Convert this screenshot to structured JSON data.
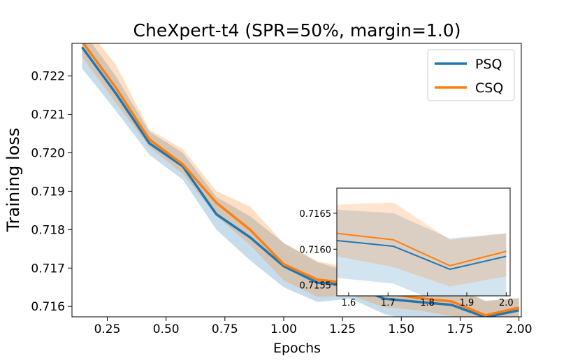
{
  "chart_data": {
    "type": "line",
    "title": "CheXpert-t4 (SPR=50%, margin=1.0)",
    "xlabel": "Epochs",
    "ylabel": "Training loss",
    "xlim": [
      0.1,
      2.01
    ],
    "ylim": [
      0.71573,
      0.72285
    ],
    "xticks": [
      0.25,
      0.5,
      0.75,
      1.0,
      1.25,
      1.5,
      1.75,
      2.0
    ],
    "xtick_labels": [
      "0.25",
      "0.50",
      "0.75",
      "1.00",
      "1.25",
      "1.50",
      "1.75",
      "2.00"
    ],
    "yticks": [
      0.716,
      0.717,
      0.718,
      0.719,
      0.72,
      0.721,
      0.722
    ],
    "ytick_labels": [
      "0.716",
      "0.717",
      "0.718",
      "0.719",
      "0.720",
      "0.721",
      "0.722"
    ],
    "legend_position": "top-right",
    "x": [
      0.143,
      0.286,
      0.429,
      0.571,
      0.714,
      0.857,
      1.0,
      1.143,
      1.286,
      1.429,
      1.571,
      1.714,
      1.857,
      2.0
    ],
    "series": [
      {
        "name": "PSQ",
        "color": "#1f77b4",
        "values": [
          0.72275,
          0.72155,
          0.72025,
          0.71965,
          0.7184,
          0.7178,
          0.71705,
          0.71662,
          0.71655,
          0.7162,
          0.71612,
          0.71604,
          0.71572,
          0.7159
        ],
        "lower": [
          0.7222,
          0.7211,
          0.71995,
          0.7193,
          0.718,
          0.7172,
          0.7165,
          0.71612,
          0.7162,
          0.7158,
          0.7156,
          0.71552,
          0.7152,
          0.7153
        ],
        "upper": [
          0.7232,
          0.722,
          0.72055,
          0.72,
          0.71885,
          0.71835,
          0.71765,
          0.71715,
          0.7169,
          0.7166,
          0.71655,
          0.7165,
          0.71615,
          0.71622
        ]
      },
      {
        "name": "CSQ",
        "color": "#ff7f0e",
        "values": [
          0.7229,
          0.7217,
          0.72035,
          0.7197,
          0.7187,
          0.718,
          0.7171,
          0.7167,
          0.7166,
          0.71635,
          0.71622,
          0.71613,
          0.71577,
          0.71597
        ],
        "lower": [
          0.7225,
          0.7213,
          0.72015,
          0.71945,
          0.71835,
          0.7176,
          0.71668,
          0.71625,
          0.71628,
          0.71598,
          0.7159,
          0.71575,
          0.71548,
          0.71562
        ],
        "upper": [
          0.7234,
          0.7223,
          0.7206,
          0.7201,
          0.719,
          0.7186,
          0.71765,
          0.71718,
          0.717,
          0.7167,
          0.71662,
          0.71665,
          0.71613,
          0.71622
        ]
      }
    ],
    "inset": {
      "xlim": [
        1.57,
        2.01
      ],
      "ylim": [
        0.71535,
        0.71685
      ],
      "xticks": [
        1.6,
        1.7,
        1.8,
        1.9,
        2.0
      ],
      "xtick_labels": [
        "1.6",
        "1.7",
        "1.8",
        "1.9",
        "2.0"
      ],
      "yticks": [
        0.7155,
        0.716,
        0.7165
      ],
      "ytick_labels": [
        "0.7155",
        "0.7160",
        "0.7165"
      ]
    }
  }
}
